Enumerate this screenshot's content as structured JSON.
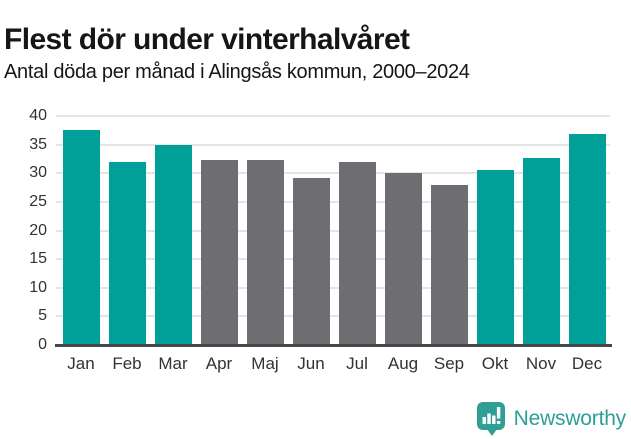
{
  "header": {
    "title": "Flest dör under vinterhalvåret",
    "subtitle": "Antal döda per månad i Alingsås kommun, 2000–2024"
  },
  "chart_data": {
    "type": "bar",
    "title": "Flest dör under vinterhalvåret",
    "subtitle": "Antal döda per månad i Alingsås kommun, 2000–2024",
    "categories": [
      "Jan",
      "Feb",
      "Mar",
      "Apr",
      "Maj",
      "Jun",
      "Jul",
      "Aug",
      "Sep",
      "Okt",
      "Nov",
      "Dec"
    ],
    "values": [
      37.5,
      32.0,
      35.0,
      32.3,
      32.3,
      29.2,
      31.9,
      30.0,
      27.9,
      30.6,
      32.7,
      36.9
    ],
    "bar_colors": [
      "winter",
      "winter",
      "winter",
      "summer",
      "summer",
      "summer",
      "summer",
      "summer",
      "summer",
      "winter",
      "winter",
      "winter"
    ],
    "color_map": {
      "winter": "#00A099",
      "summer": "#6E6E72"
    },
    "yticks": [
      0,
      5,
      10,
      15,
      20,
      25,
      30,
      35,
      40
    ],
    "ylim": [
      0,
      40
    ],
    "xlabel": "",
    "ylabel": "",
    "grid": true,
    "legend": false
  },
  "footer": {
    "brand": "Newsworthy",
    "logo_icon": "newsworthy-bar-chart-bubble-icon"
  },
  "colors": {
    "accent_teal": "#00A099",
    "bar_gray": "#6E6E72",
    "gridline": "#E5E5E5",
    "axis_line": "#474747",
    "tick_text": "#2E3338",
    "title_text": "#161616",
    "logo_teal": "#2E9E97"
  }
}
